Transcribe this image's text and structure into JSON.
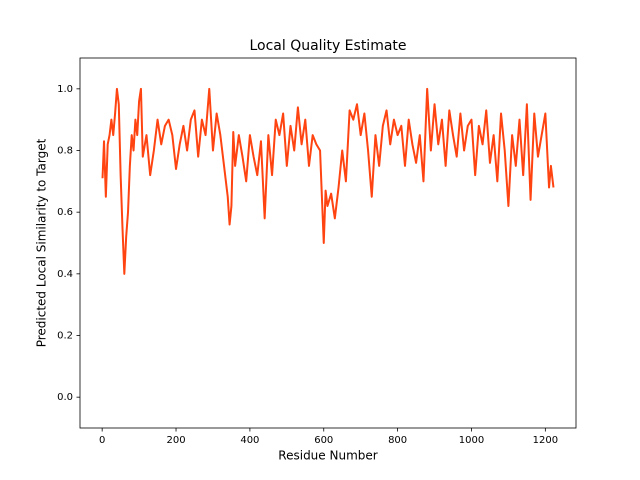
{
  "chart_data": {
    "type": "line",
    "title": "Local Quality Estimate",
    "xlabel": "Residue Number",
    "ylabel": "Predicted Local Similarity to Target",
    "xlim": [
      -60,
      1283
    ],
    "ylim": [
      -0.1,
      1.1
    ],
    "xticks": [
      0,
      200,
      400,
      600,
      800,
      1000,
      1200
    ],
    "yticks": [
      {
        "value": 0,
        "label": "0.0"
      },
      0.2,
      0.4,
      0.6,
      0.8,
      {
        "value": 1,
        "label": "1.0"
      }
    ],
    "series": [
      {
        "color": "#ff4411",
        "x": [
          1,
          5,
          10,
          15,
          20,
          25,
          30,
          35,
          40,
          45,
          50,
          55,
          60,
          65,
          70,
          75,
          80,
          85,
          90,
          95,
          100,
          105,
          110,
          120,
          130,
          140,
          150,
          160,
          170,
          180,
          190,
          200,
          210,
          220,
          230,
          240,
          250,
          260,
          270,
          280,
          290,
          300,
          310,
          320,
          330,
          340,
          345,
          350,
          355,
          360,
          370,
          380,
          390,
          400,
          410,
          420,
          430,
          440,
          450,
          460,
          470,
          480,
          490,
          500,
          510,
          520,
          530,
          540,
          550,
          560,
          570,
          580,
          590,
          600,
          605,
          610,
          620,
          630,
          640,
          650,
          660,
          670,
          680,
          690,
          700,
          710,
          720,
          730,
          740,
          750,
          760,
          770,
          780,
          790,
          800,
          810,
          820,
          830,
          840,
          850,
          860,
          870,
          880,
          890,
          900,
          910,
          920,
          930,
          940,
          950,
          960,
          970,
          980,
          990,
          1000,
          1010,
          1020,
          1030,
          1040,
          1050,
          1060,
          1070,
          1080,
          1090,
          1100,
          1110,
          1120,
          1130,
          1140,
          1150,
          1160,
          1170,
          1180,
          1190,
          1200,
          1210,
          1215,
          1222
        ],
        "values": [
          0.71,
          0.83,
          0.65,
          0.82,
          0.85,
          0.9,
          0.85,
          0.92,
          1.0,
          0.95,
          0.72,
          0.55,
          0.4,
          0.52,
          0.6,
          0.75,
          0.85,
          0.8,
          0.9,
          0.85,
          0.96,
          1.0,
          0.78,
          0.85,
          0.72,
          0.8,
          0.9,
          0.82,
          0.88,
          0.9,
          0.85,
          0.74,
          0.82,
          0.88,
          0.8,
          0.9,
          0.93,
          0.78,
          0.9,
          0.85,
          1.0,
          0.8,
          0.92,
          0.85,
          0.75,
          0.65,
          0.56,
          0.62,
          0.86,
          0.75,
          0.85,
          0.78,
          0.7,
          0.85,
          0.78,
          0.72,
          0.83,
          0.58,
          0.85,
          0.72,
          0.9,
          0.85,
          0.92,
          0.75,
          0.88,
          0.8,
          0.94,
          0.82,
          0.9,
          0.75,
          0.85,
          0.82,
          0.8,
          0.5,
          0.67,
          0.62,
          0.66,
          0.58,
          0.68,
          0.8,
          0.7,
          0.93,
          0.9,
          0.95,
          0.85,
          0.92,
          0.8,
          0.65,
          0.85,
          0.75,
          0.88,
          0.93,
          0.82,
          0.9,
          0.85,
          0.88,
          0.75,
          0.9,
          0.82,
          0.76,
          0.85,
          0.7,
          1.0,
          0.8,
          0.95,
          0.82,
          0.9,
          0.75,
          0.93,
          0.85,
          0.78,
          0.92,
          0.8,
          0.88,
          0.9,
          0.72,
          0.88,
          0.82,
          0.93,
          0.76,
          0.85,
          0.7,
          0.92,
          0.8,
          0.62,
          0.85,
          0.75,
          0.9,
          0.72,
          0.95,
          0.64,
          0.92,
          0.78,
          0.85,
          0.92,
          0.68,
          0.75,
          0.68
        ]
      }
    ]
  }
}
